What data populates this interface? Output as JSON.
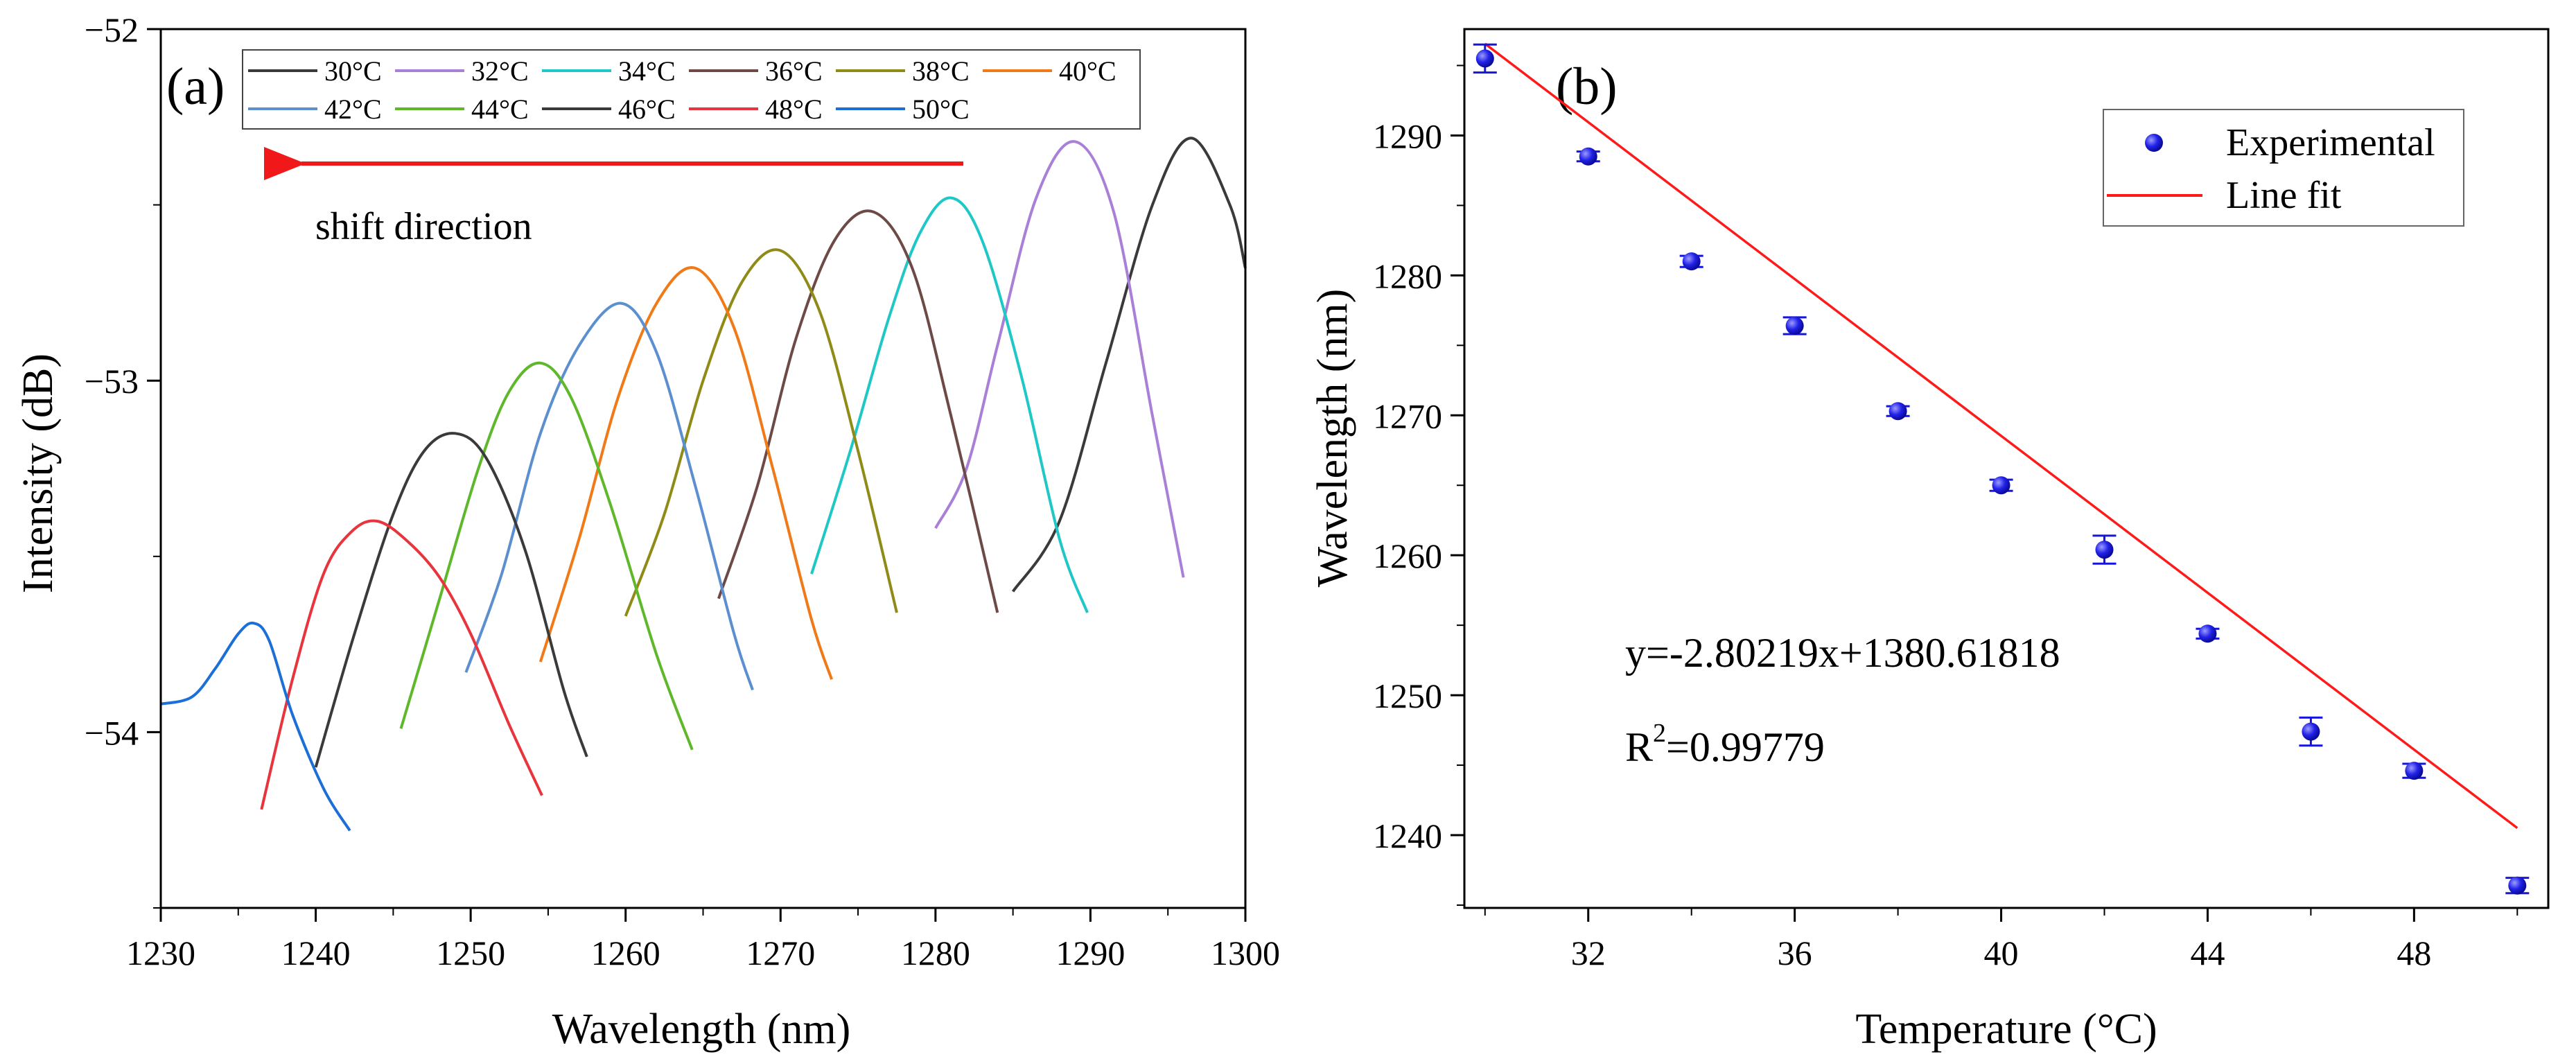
{
  "chart_data": [
    {
      "panel": "(a)",
      "type": "line",
      "title": "",
      "xlabel": "Wavelength (nm)",
      "ylabel": "Intensity (dB)",
      "xlim": [
        1230,
        1300
      ],
      "ylim": [
        -54.5,
        -52
      ],
      "xticks": [
        1230,
        1240,
        1250,
        1260,
        1270,
        1280,
        1290,
        1300
      ],
      "yticks": [
        -54,
        -53,
        -52
      ],
      "legend_position": "top",
      "annotation": "shift direction",
      "series": [
        {
          "name": "30°C",
          "color": "#3a3a3a",
          "peak_x": 1296.5,
          "peak_y": -52.31,
          "x": [
            1285,
            1288,
            1291,
            1294,
            1296.5,
            1299,
            1300
          ],
          "y": [
            -53.6,
            -53.4,
            -52.95,
            -52.5,
            -52.31,
            -52.5,
            -52.68
          ]
        },
        {
          "name": "32°C",
          "color": "#a97fd8",
          "peak_x": 1289,
          "peak_y": -52.32,
          "x": [
            1280,
            1282,
            1284,
            1286.5,
            1289,
            1291.5,
            1294,
            1296
          ],
          "y": [
            -53.42,
            -53.25,
            -52.9,
            -52.48,
            -52.32,
            -52.52,
            -53.1,
            -53.56
          ]
        },
        {
          "name": "34°C",
          "color": "#1fc7c7",
          "peak_x": 1281,
          "peak_y": -52.48,
          "x": [
            1272,
            1274.5,
            1277,
            1279,
            1281,
            1283,
            1285.5,
            1288,
            1289.8
          ],
          "y": [
            -53.55,
            -53.2,
            -52.82,
            -52.58,
            -52.48,
            -52.6,
            -52.98,
            -53.45,
            -53.66
          ]
        },
        {
          "name": "36°C",
          "color": "#6e4a47",
          "peak_x": 1276,
          "peak_y": -52.52,
          "x": [
            1266,
            1268.5,
            1271,
            1273.5,
            1276,
            1278.5,
            1281,
            1284
          ],
          "y": [
            -53.62,
            -53.3,
            -52.88,
            -52.6,
            -52.52,
            -52.68,
            -53.1,
            -53.66
          ]
        },
        {
          "name": "38°C",
          "color": "#8f8b16",
          "peak_x": 1270,
          "peak_y": -52.63,
          "x": [
            1260,
            1262.5,
            1265,
            1267.5,
            1270,
            1272.5,
            1275,
            1277.5
          ],
          "y": [
            -53.67,
            -53.38,
            -53.0,
            -52.72,
            -52.63,
            -52.8,
            -53.2,
            -53.66
          ]
        },
        {
          "name": "40°C",
          "color": "#f07a17",
          "peak_x": 1264.5,
          "peak_y": -52.68,
          "x": [
            1254.5,
            1257,
            1259.5,
            1262,
            1264.5,
            1267,
            1269.5,
            1272,
            1273.3
          ],
          "y": [
            -53.8,
            -53.45,
            -53.05,
            -52.78,
            -52.68,
            -52.85,
            -53.25,
            -53.68,
            -53.85
          ]
        },
        {
          "name": "42°C",
          "color": "#5b8fd0",
          "peak_x": 1259.7,
          "peak_y": -52.78,
          "x": [
            1249.7,
            1252,
            1254.5,
            1257,
            1259.7,
            1262,
            1264.5,
            1267,
            1268.2
          ],
          "y": [
            -53.83,
            -53.55,
            -53.15,
            -52.9,
            -52.78,
            -52.92,
            -53.3,
            -53.72,
            -53.88
          ]
        },
        {
          "name": "44°C",
          "color": "#5fb82b",
          "peak_x": 1254.5,
          "peak_y": -52.95,
          "x": [
            1245.5,
            1248,
            1250.5,
            1252.5,
            1254.5,
            1256.5,
            1259,
            1262,
            1264.3
          ],
          "y": [
            -53.99,
            -53.62,
            -53.25,
            -53.03,
            -52.95,
            -53.05,
            -53.35,
            -53.78,
            -54.05
          ]
        },
        {
          "name": "46°C",
          "color": "#3a3a3a",
          "peak_x": 1249,
          "peak_y": -53.15,
          "x": [
            1240,
            1242.5,
            1245,
            1247,
            1249,
            1251,
            1253.5,
            1256,
            1257.5
          ],
          "y": [
            -54.1,
            -53.72,
            -53.38,
            -53.2,
            -53.15,
            -53.22,
            -53.48,
            -53.88,
            -54.07
          ]
        },
        {
          "name": "48°C",
          "color": "#e8343c",
          "peak_x": 1244,
          "peak_y": -53.4,
          "x": [
            1236.5,
            1238.5,
            1240.5,
            1242.3,
            1244,
            1246,
            1248,
            1250,
            1252.5,
            1254.6
          ],
          "y": [
            -54.22,
            -53.85,
            -53.55,
            -53.43,
            -53.4,
            -53.46,
            -53.56,
            -53.72,
            -53.98,
            -54.18
          ]
        },
        {
          "name": "50°C",
          "color": "#1c6fd6",
          "peak_x": 1236,
          "peak_y": -53.69,
          "x": [
            1230,
            1232,
            1233.5,
            1235,
            1236,
            1237,
            1238.5,
            1240.5,
            1242.2
          ],
          "y": [
            -53.92,
            -53.9,
            -53.82,
            -53.72,
            -53.69,
            -53.74,
            -53.95,
            -54.16,
            -54.28
          ]
        }
      ]
    },
    {
      "panel": "(b)",
      "type": "scatter",
      "title": "",
      "xlabel": "Temperature (°C)",
      "ylabel": "Wavelength (nm)",
      "xlim": [
        29.6,
        50.6
      ],
      "ylim": [
        1234.8,
        1297.6
      ],
      "xticks": [
        32,
        36,
        40,
        44,
        48
      ],
      "yticks": [
        1240,
        1250,
        1260,
        1270,
        1280,
        1290
      ],
      "legend_position": "top-right",
      "series": [
        {
          "name": "Experimental",
          "color": "#1515e0",
          "x": [
            30,
            32,
            34,
            36,
            38,
            40,
            42,
            44,
            46,
            48,
            50
          ],
          "y": [
            1295.5,
            1288.5,
            1281,
            1276.4,
            1270.3,
            1265,
            1260.4,
            1254.4,
            1247.4,
            1244.6,
            1236.4
          ],
          "error": [
            1.0,
            0.35,
            0.4,
            0.6,
            0.35,
            0.4,
            1.0,
            0.35,
            1.0,
            0.5,
            0.55
          ]
        },
        {
          "name": "Line fit",
          "color": "#ff1a1a",
          "slope": -2.80219,
          "intercept": 1380.61818,
          "x_range": [
            30,
            50
          ]
        }
      ],
      "annotations": {
        "equation": "y=-2.80219x+1380.61818",
        "r2_prefix": "R",
        "r2_sup": "2",
        "r2_value": "=0.99779"
      }
    }
  ]
}
